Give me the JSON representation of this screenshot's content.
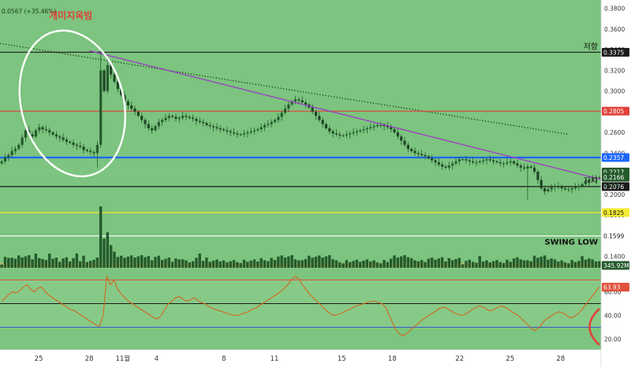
{
  "header": {
    "change_text": "0.0567 (+35.46%)",
    "annotation_title": "개미지옥빔"
  },
  "colors": {
    "background": "#7cc47f",
    "candle": "#245a2c",
    "ellipse": "#ffffff",
    "trendline": "#9b3fc4",
    "dotted_trend": "#1a3a1a",
    "resistance_line": "#1a1a1a",
    "red_line": "#e0413a",
    "blue_line": "#1e66ff",
    "yellow_line": "#f5ec34",
    "white_line": "#ffffff",
    "rsi_line": "#d2691e",
    "rsi_high_marker": "#e0513a",
    "axis_bg": "#ffffff",
    "axis_text": "#333333"
  },
  "chart_data": {
    "type": "candlestick",
    "price_axis": {
      "ticks": [
        0.38,
        0.36,
        0.34,
        0.32,
        0.3,
        0.28,
        0.26,
        0.24,
        0.22,
        0.2,
        0.18,
        0.16,
        0.14
      ],
      "tick_labels": [
        "0.3800",
        "0.3600",
        "0.3400",
        "0.3200",
        "0.3000",
        "0.2800",
        "0.2600",
        "0.2400",
        "0.2200",
        "0.2000",
        "0.1800",
        "0.1600",
        "0.1400"
      ],
      "range": [
        0.131,
        0.388
      ]
    },
    "time_axis": {
      "labels": [
        "25",
        "28",
        "11월",
        "4",
        "8",
        "11",
        "15",
        "18",
        "22",
        "25",
        "28"
      ],
      "day_index": [
        0,
        3,
        5,
        7,
        11,
        14,
        18,
        21,
        25,
        28,
        31
      ],
      "range": [
        -2.3,
        33.4
      ]
    },
    "levels": [
      {
        "name": "저항",
        "value": 0.3375,
        "label": "0.3375",
        "color": "#1a1a1a"
      },
      {
        "name": "",
        "value": 0.2805,
        "label": "0.2805",
        "color": "#e0413a"
      },
      {
        "name": "",
        "value": 0.2357,
        "label": "0.2357",
        "color": "#1e66ff"
      },
      {
        "name": "지지",
        "value": 0.2076,
        "label": "0.2076",
        "color": "#1a1a1a"
      },
      {
        "name": "",
        "value": 0.1825,
        "label": "0.1825",
        "color": "#f5ec34"
      },
      {
        "name": "SWING LOW",
        "value": 0.1599,
        "label": "0.1599",
        "color": "#ffffff"
      }
    ],
    "price_labels": [
      {
        "value": 0.2217,
        "label": "0.2217",
        "color": "#245a2c"
      },
      {
        "value": 0.2166,
        "label": "0.2166",
        "color": "#245a2c"
      }
    ],
    "countdown": "04:16",
    "volume_label": "345.92M",
    "trendline": {
      "from": [
        3.0,
        0.339
      ],
      "to": [
        33.4,
        0.2145
      ]
    },
    "dotted_trendline": {
      "from": [
        -2.3,
        0.346
      ],
      "to": [
        31.5,
        0.258
      ]
    },
    "ellipse_center": [
      2.0,
      0.288
    ],
    "close": [
      0.232,
      0.236,
      0.238,
      0.242,
      0.244,
      0.248,
      0.255,
      0.262,
      0.258,
      0.256,
      0.262,
      0.265,
      0.263,
      0.262,
      0.26,
      0.258,
      0.256,
      0.255,
      0.253,
      0.251,
      0.25,
      0.248,
      0.247,
      0.246,
      0.243,
      0.242,
      0.241,
      0.24,
      0.248,
      0.32,
      0.3,
      0.325,
      0.316,
      0.309,
      0.302,
      0.296,
      0.29,
      0.286,
      0.283,
      0.28,
      0.276,
      0.272,
      0.268,
      0.264,
      0.262,
      0.266,
      0.27,
      0.272,
      0.274,
      0.276,
      0.275,
      0.273,
      0.274,
      0.276,
      0.275,
      0.274,
      0.273,
      0.271,
      0.27,
      0.269,
      0.267,
      0.266,
      0.265,
      0.264,
      0.263,
      0.262,
      0.261,
      0.26,
      0.259,
      0.258,
      0.258,
      0.259,
      0.26,
      0.261,
      0.262,
      0.263,
      0.265,
      0.267,
      0.268,
      0.27,
      0.272,
      0.275,
      0.279,
      0.283,
      0.287,
      0.29,
      0.292,
      0.291,
      0.289,
      0.287,
      0.284,
      0.28,
      0.276,
      0.272,
      0.268,
      0.264,
      0.261,
      0.259,
      0.258,
      0.257,
      0.257,
      0.258,
      0.259,
      0.26,
      0.261,
      0.262,
      0.263,
      0.264,
      0.265,
      0.266,
      0.267,
      0.267,
      0.266,
      0.265,
      0.263,
      0.26,
      0.256,
      0.252,
      0.248,
      0.244,
      0.242,
      0.24,
      0.239,
      0.238,
      0.237,
      0.235,
      0.233,
      0.231,
      0.229,
      0.227,
      0.226,
      0.228,
      0.23,
      0.232,
      0.234,
      0.234,
      0.233,
      0.232,
      0.231,
      0.231,
      0.232,
      0.233,
      0.234,
      0.233,
      0.232,
      0.231,
      0.23,
      0.23,
      0.231,
      0.232,
      0.23,
      0.228,
      0.226,
      0.225,
      0.227,
      0.226,
      0.222,
      0.214,
      0.206,
      0.203,
      0.205,
      0.207,
      0.208,
      0.207,
      0.206,
      0.205,
      0.205,
      0.206,
      0.207,
      0.208,
      0.21,
      0.212,
      0.214,
      0.215,
      0.216,
      0.2166
    ],
    "rsi_axis": {
      "ticks": [
        60,
        40,
        20
      ],
      "tick_labels": [
        "60.00",
        "40.00",
        "20.00"
      ],
      "range": [
        15,
        77
      ]
    },
    "rsi_levels": {
      "upper": 70,
      "middle": 50,
      "lower": 30
    },
    "rsi_value": 63.93,
    "rsi_label": "63.93",
    "rsi": [
      52,
      55,
      58,
      60,
      59,
      61,
      64,
      66,
      62,
      60,
      63,
      64,
      60,
      57,
      55,
      53,
      51,
      49,
      47,
      45,
      44,
      42,
      40,
      38,
      36,
      34,
      32,
      31,
      40,
      73,
      66,
      70,
      62,
      58,
      55,
      52,
      50,
      48,
      46,
      44,
      42,
      40,
      38,
      37,
      40,
      45,
      50,
      52,
      55,
      56,
      54,
      52,
      53,
      55,
      53,
      51,
      50,
      48,
      46,
      45,
      44,
      43,
      42,
      41,
      40,
      40,
      41,
      42,
      43,
      45,
      46,
      48,
      50,
      52,
      54,
      56,
      58,
      60,
      63,
      66,
      70,
      73,
      71,
      66,
      62,
      58,
      55,
      52,
      49,
      46,
      43,
      41,
      40,
      41,
      42,
      44,
      45,
      47,
      48,
      49,
      50,
      51,
      52,
      52,
      51,
      50,
      47,
      40,
      33,
      27,
      24,
      23,
      25,
      28,
      31,
      33,
      36,
      38,
      40,
      42,
      44,
      46,
      47,
      46,
      44,
      42,
      41,
      40,
      41,
      43,
      45,
      47,
      48,
      47,
      45,
      44,
      45,
      47,
      48,
      47,
      45,
      43,
      41,
      39,
      36,
      33,
      30,
      27,
      29,
      32,
      36,
      38,
      40,
      42,
      43,
      42,
      40,
      38,
      39,
      41,
      44,
      48,
      52,
      56,
      60,
      64
    ]
  }
}
